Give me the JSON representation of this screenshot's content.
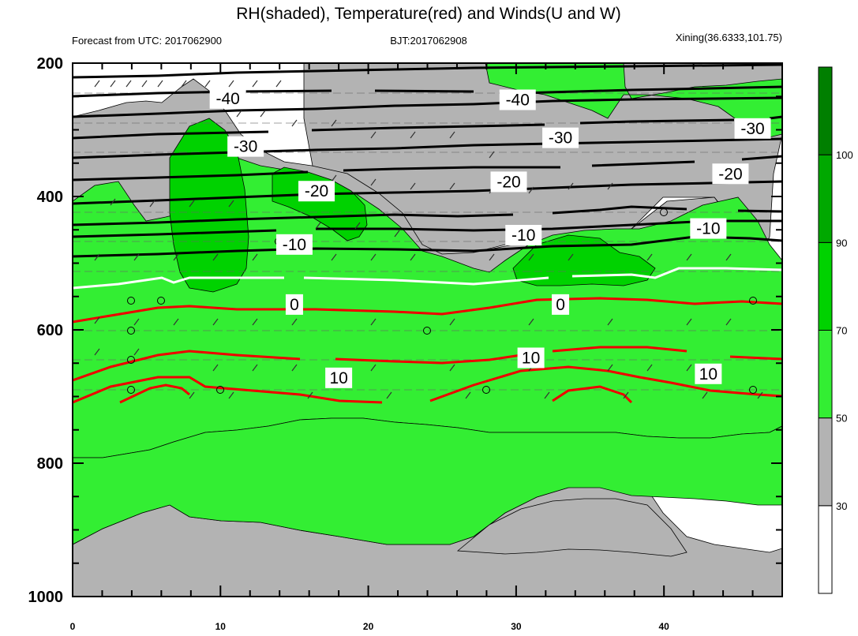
{
  "chart_data": {
    "type": "contour",
    "title": "RH(shaded), Temperature(red) and Winds(U and W)",
    "subtitle_left": "Forecast from UTC: 2017062900",
    "subtitle_center": "BJT:2017062908",
    "subtitle_right": "Xining(36.6333,101.75)",
    "xlabel": "",
    "ylabel": "",
    "x_ticks": [
      "0",
      "10",
      "20",
      "30",
      "40"
    ],
    "y_ticks": [
      "200",
      "400",
      "600",
      "800",
      "1000"
    ],
    "xlim": [
      0,
      48
    ],
    "ylim": [
      1000,
      200
    ],
    "colorbar": {
      "labels": [
        "30",
        "50",
        "70",
        "90",
        "100"
      ],
      "colors": [
        "#ffffff",
        "#b3b3b3",
        "#33ee33",
        "#00d200",
        "#00a800",
        "#007f00"
      ]
    },
    "colors": {
      "rh_30_50": "#b3b3b3",
      "rh_50_70": "#33ee33",
      "rh_70_90": "#00d200",
      "temp_warm": "#ee0000",
      "temp_freezing": "#ffffff",
      "temp_cold": "#000000"
    },
    "contour_labels": [
      {
        "text": "-40",
        "x": 10.5,
        "y": 253
      },
      {
        "text": "-40",
        "x": 30.1,
        "y": 255
      },
      {
        "text": "-30",
        "x": 11.7,
        "y": 325
      },
      {
        "text": "-30",
        "x": 33.0,
        "y": 312
      },
      {
        "text": "-30",
        "x": 46.0,
        "y": 298
      },
      {
        "text": "-20",
        "x": 16.5,
        "y": 392
      },
      {
        "text": "-20",
        "x": 29.5,
        "y": 378
      },
      {
        "text": "-20",
        "x": 44.5,
        "y": 366
      },
      {
        "text": "-10",
        "x": 15.0,
        "y": 472
      },
      {
        "text": "-10",
        "x": 30.5,
        "y": 458
      },
      {
        "text": "-10",
        "x": 43.0,
        "y": 448
      },
      {
        "text": "0",
        "x": 15.0,
        "y": 562
      },
      {
        "text": "0",
        "x": 33.0,
        "y": 562
      },
      {
        "text": "10",
        "x": 18.0,
        "y": 672
      },
      {
        "text": "10",
        "x": 31.0,
        "y": 642
      },
      {
        "text": "10",
        "x": 43.0,
        "y": 666
      }
    ]
  }
}
